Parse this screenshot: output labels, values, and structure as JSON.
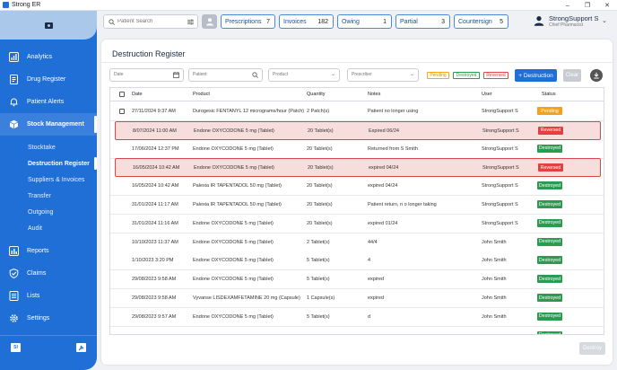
{
  "window": {
    "title": "Strong ER",
    "controls": [
      "–",
      "❐",
      "✕"
    ]
  },
  "sidebar": {
    "items": [
      {
        "label": "Analytics",
        "icon": "analytics-icon"
      },
      {
        "label": "Drug Register",
        "icon": "drug-register-icon"
      },
      {
        "label": "Patient Alerts",
        "icon": "bell-icon"
      },
      {
        "label": "Stock Management",
        "icon": "box-icon",
        "active": true
      }
    ],
    "sub_items": [
      {
        "label": "Stocktake"
      },
      {
        "label": "Destruction Register",
        "active": true
      },
      {
        "label": "Suppliers & Invoices"
      },
      {
        "label": "Transfer"
      },
      {
        "label": "Outgoing"
      },
      {
        "label": "Audit"
      }
    ],
    "items_after": [
      {
        "label": "Reports",
        "icon": "reports-icon"
      },
      {
        "label": "Claims",
        "icon": "shield-check-icon"
      },
      {
        "label": "Lists",
        "icon": "list-icon"
      },
      {
        "label": "Settings",
        "icon": "gear-icon"
      }
    ],
    "footer_badge": "SI"
  },
  "header": {
    "search_placeholder": "Patient Search",
    "pills": [
      {
        "label": "Prescriptions",
        "count": "7"
      },
      {
        "label": "Invoices",
        "count": "182"
      },
      {
        "label": "Owing",
        "count": "1"
      },
      {
        "label": "Partial",
        "count": "3"
      },
      {
        "label": "Countersign",
        "count": "5"
      }
    ],
    "user": {
      "name": "StrongSupport S",
      "role": "Chief Pharmacist"
    }
  },
  "page": {
    "title": "Destruction Register",
    "filters": {
      "date_placeholder": "Date",
      "patient_placeholder": "Patient",
      "product_placeholder": "Product",
      "prescriber_placeholder": "Prescriber"
    },
    "status_filters": {
      "pending": "Pending",
      "destroyed": "Destroyed",
      "reversed": "Reversed"
    },
    "buttons": {
      "destruction": "+ Destruction",
      "clear": "Clear",
      "destroy": "Destroy"
    },
    "colors": {
      "accent": "#1f6fd6",
      "pending": "#f5a11a",
      "destroyed": "#2c9a50",
      "reversed": "#e24141"
    }
  },
  "table": {
    "columns": {
      "date": "Date",
      "product": "Product",
      "quantity": "Quantity",
      "notes": "Notes",
      "user": "User",
      "status": "Status"
    },
    "rows": [
      {
        "date": "27/11/2024 9:37 AM",
        "product": "Durogesic FENTANYL 12 micrograms/hour (Patch)",
        "quantity": "2 Patch(s)",
        "notes": "Patient no longer using",
        "user": "StrongSupport S",
        "status": "Pending",
        "kind": "pending",
        "checkbox": true
      },
      {
        "date": "8/07/2024 11:00 AM",
        "product": "Endone OXYCODONE 5 mg (Tablet)",
        "quantity": "20 Tablet(s)",
        "notes": "Expired 06/24",
        "user": "StrongSupport S",
        "status": "Reversed",
        "kind": "reversed"
      },
      {
        "date": "17/06/2024 12:37 PM",
        "product": "Endone OXYCODONE 5 mg (Tablet)",
        "quantity": "20 Tablet(s)",
        "notes": "Returned from S Smith",
        "user": "StrongSupport S",
        "status": "Destroyed",
        "kind": "destroyed"
      },
      {
        "date": "16/05/2024 10:42 AM",
        "product": "Endone OXYCODONE 5 mg (Tablet)",
        "quantity": "20 Tablet(s)",
        "notes": "expired 04/24",
        "user": "StrongSupport S",
        "status": "Reversed",
        "kind": "reversed"
      },
      {
        "date": "16/05/2024 10:42 AM",
        "product": "Palexia IR TAPENTADOL 50 mg (Tablet)",
        "quantity": "20 Tablet(s)",
        "notes": "expired 04/24",
        "user": "StrongSupport S",
        "status": "Destroyed",
        "kind": "destroyed"
      },
      {
        "date": "31/01/2024 11:17 AM",
        "product": "Palexia IR TAPENTADOL 50 mg (Tablet)",
        "quantity": "20 Tablet(s)",
        "notes": "Patient return, n o longer taking",
        "user": "StrongSupport S",
        "status": "Destroyed",
        "kind": "destroyed"
      },
      {
        "date": "31/01/2024 11:16 AM",
        "product": "Endone OXYCODONE 5 mg (Tablet)",
        "quantity": "20 Tablet(s)",
        "notes": "expired 01/24",
        "user": "StrongSupport S",
        "status": "Destroyed",
        "kind": "destroyed"
      },
      {
        "date": "10/10/2023 11:37 AM",
        "product": "Endone OXYCODONE 5 mg (Tablet)",
        "quantity": "2 Tablet(s)",
        "notes": "44/4",
        "user": "John Smith",
        "status": "Destroyed",
        "kind": "destroyed"
      },
      {
        "date": "1/10/2023 3:20 PM",
        "product": "Endone OXYCODONE 5 mg (Tablet)",
        "quantity": "5 Tablet(s)",
        "notes": "4",
        "user": "John Smith",
        "status": "Destroyed",
        "kind": "destroyed"
      },
      {
        "date": "29/08/2023 9:58 AM",
        "product": "Endone OXYCODONE 5 mg (Tablet)",
        "quantity": "5 Tablet(s)",
        "notes": "expired",
        "user": "John Smith",
        "status": "Destroyed",
        "kind": "destroyed"
      },
      {
        "date": "29/08/2023 9:58 AM",
        "product": "Vyvanse LISDEXAMFETAMINE 20 mg (Capsule)",
        "quantity": "1 Capsule(s)",
        "notes": "expired",
        "user": "John Smith",
        "status": "Destroyed",
        "kind": "destroyed"
      },
      {
        "date": "29/08/2023 9:57 AM",
        "product": "Endone OXYCODONE 5 mg (Tablet)",
        "quantity": "5 Tablet(s)",
        "notes": "d",
        "user": "John Smith",
        "status": "Destroyed",
        "kind": "destroyed"
      },
      {
        "date": "",
        "product": "",
        "quantity": "",
        "notes": "",
        "user": "",
        "status": "Destroyed",
        "kind": "destroyed"
      }
    ]
  }
}
